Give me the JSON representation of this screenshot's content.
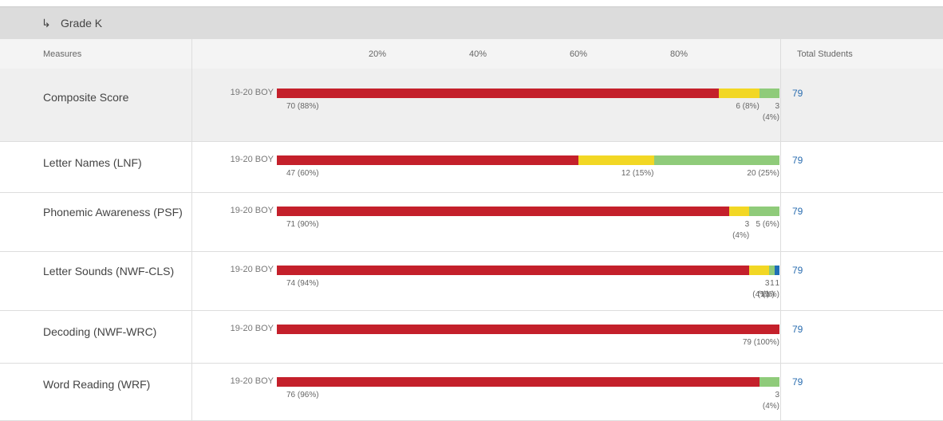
{
  "header": {
    "title": "Grade K"
  },
  "columns": {
    "measures": "Measures",
    "total": "Total Students"
  },
  "axis": {
    "ticks": [
      {
        "value": 20,
        "label": "20%"
      },
      {
        "value": 40,
        "label": "40%"
      },
      {
        "value": 60,
        "label": "60%"
      },
      {
        "value": 80,
        "label": "80%"
      }
    ]
  },
  "rows": [
    {
      "measure": "Composite Score",
      "period": "19-20 BOY",
      "total": 79,
      "segments": [
        {
          "value": 88,
          "label": "70 (88%)",
          "color": "#c4202b"
        },
        {
          "value": 8,
          "label": "6 (8%)",
          "color": "#f2d724"
        },
        {
          "value": 4,
          "label": "3 (4%)",
          "color": "#8fcb7a"
        }
      ]
    },
    {
      "measure": "Letter Names (LNF)",
      "period": "19-20 BOY",
      "total": 79,
      "segments": [
        {
          "value": 60,
          "label": "47 (60%)",
          "color": "#c4202b"
        },
        {
          "value": 15,
          "label": "12 (15%)",
          "color": "#f2d724"
        },
        {
          "value": 25,
          "label": "20 (25%)",
          "color": "#8fcb7a"
        }
      ]
    },
    {
      "measure": "Phonemic Awareness (PSF)",
      "period": "19-20 BOY",
      "total": 79,
      "segments": [
        {
          "value": 90,
          "label": "71 (90%)",
          "color": "#c4202b"
        },
        {
          "value": 4,
          "label": "3 (4%)",
          "color": "#f2d724"
        },
        {
          "value": 6,
          "label": "5 (6%)",
          "color": "#8fcb7a"
        }
      ]
    },
    {
      "measure": "Letter Sounds (NWF-CLS)",
      "period": "19-20 BOY",
      "total": 79,
      "segments": [
        {
          "value": 94,
          "label": "74 (94%)",
          "color": "#c4202b"
        },
        {
          "value": 4,
          "label": "3 (4%)",
          "color": "#f2d724"
        },
        {
          "value": 1,
          "label": "1 (1%)",
          "color": "#8fcb7a"
        },
        {
          "value": 1,
          "label": "1 (1%)",
          "color": "#1f6fb5"
        }
      ]
    },
    {
      "measure": "Decoding (NWF-WRC)",
      "period": "19-20 BOY",
      "total": 79,
      "segments": [
        {
          "value": 100,
          "label": "79 (100%)",
          "color": "#c4202b"
        }
      ]
    },
    {
      "measure": "Word Reading (WRF)",
      "period": "19-20 BOY",
      "total": 79,
      "segments": [
        {
          "value": 96,
          "label": "76 (96%)",
          "color": "#c4202b"
        },
        {
          "value": 4,
          "label": "3 (4%)",
          "color": "#8fcb7a"
        }
      ]
    }
  ]
}
